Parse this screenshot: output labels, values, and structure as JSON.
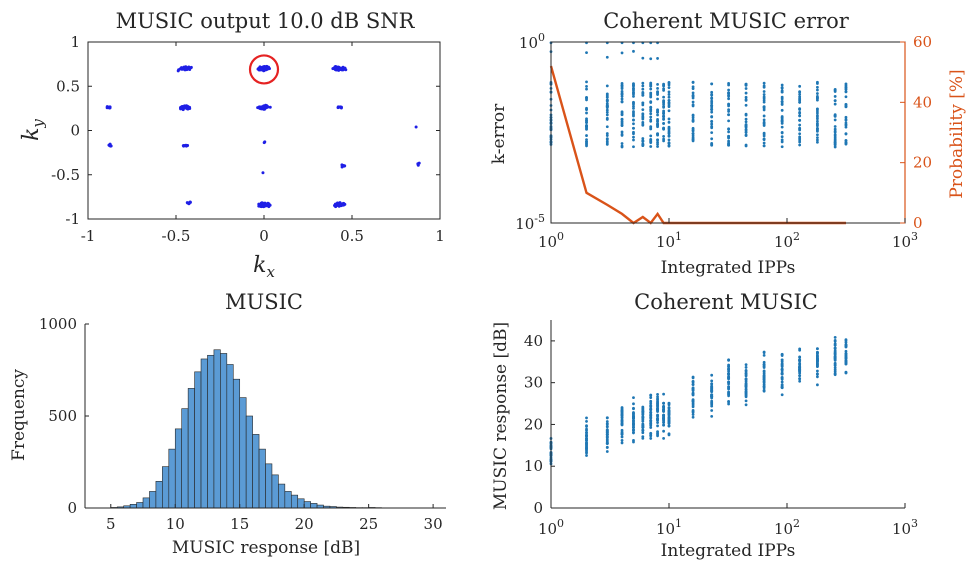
{
  "colors": {
    "blue_points": "#1f1fe6",
    "scatter_blue": "#1f77b4",
    "prob_orange": "#d95319",
    "hist_fill": "#5b9bd5",
    "axis": "#262626"
  },
  "chart_data": [
    {
      "id": "tl",
      "type": "scatter",
      "title": "MUSIC output 10.0 dB SNR",
      "xlabel": "k",
      "xlabel_sub": "x",
      "ylabel": "k",
      "ylabel_sub": "y",
      "xlim": [
        -1,
        1
      ],
      "ylim": [
        -1,
        1
      ],
      "xticks": [
        -1,
        -0.5,
        0,
        0.5,
        1
      ],
      "xtick_labels": [
        "-1",
        "-0.5",
        "0",
        "0.5",
        "1"
      ],
      "yticks": [
        -1,
        -0.5,
        0,
        0.5,
        1
      ],
      "ytick_labels": [
        "-1",
        "-0.5",
        "0",
        "0.5",
        "1"
      ],
      "clusters": [
        {
          "x": -0.45,
          "y": 0.7,
          "n": 40
        },
        {
          "x": 0.0,
          "y": 0.7,
          "n": 90
        },
        {
          "x": 0.43,
          "y": 0.7,
          "n": 40
        },
        {
          "x": -0.88,
          "y": 0.26,
          "n": 8
        },
        {
          "x": -0.45,
          "y": 0.26,
          "n": 45
        },
        {
          "x": 0.0,
          "y": 0.26,
          "n": 45
        },
        {
          "x": 0.43,
          "y": 0.26,
          "n": 8
        },
        {
          "x": -0.88,
          "y": -0.17,
          "n": 6
        },
        {
          "x": -0.45,
          "y": -0.17,
          "n": 8
        },
        {
          "x": 0.0,
          "y": -0.13,
          "n": 2
        },
        {
          "x": 0.45,
          "y": -0.4,
          "n": 6
        },
        {
          "x": 0.87,
          "y": 0.03,
          "n": 1
        },
        {
          "x": 0.88,
          "y": -0.38,
          "n": 4
        },
        {
          "x": 0.0,
          "y": -0.48,
          "n": 1
        },
        {
          "x": -0.43,
          "y": -0.82,
          "n": 8
        },
        {
          "x": 0.0,
          "y": -0.84,
          "n": 55
        },
        {
          "x": 0.43,
          "y": -0.84,
          "n": 50
        }
      ],
      "highlight": {
        "x": 0.0,
        "y": 0.69
      }
    },
    {
      "id": "tr",
      "type": "scatter",
      "title": "Coherent MUSIC error",
      "xlabel": "Integrated IPPs",
      "ylabel": "k-error",
      "y2label": "Probability [%]",
      "xscale": "log",
      "yscale": "log",
      "xlim": [
        1,
        1000
      ],
      "ylim": [
        1e-05,
        1
      ],
      "y2lim": [
        0,
        60
      ],
      "xticks": [
        1,
        10,
        100,
        1000
      ],
      "xtick_base": "10",
      "xtick_exps": [
        "0",
        "1",
        "2",
        "3"
      ],
      "yticks": [
        1e-05,
        1
      ],
      "ytick_base": "10",
      "ytick_exps": [
        "-5",
        "0"
      ],
      "y2ticks": [
        0,
        20,
        40,
        60
      ],
      "y2tick_labels": [
        "0",
        "20",
        "40",
        "60"
      ],
      "ipps": [
        1,
        2,
        3,
        4,
        5,
        6,
        7,
        8,
        9,
        10,
        16,
        23,
        32,
        45,
        64,
        91,
        128,
        181,
        256,
        316
      ],
      "kerror_band": {
        "center_log10": -2.0,
        "half_span_log10": 0.9
      },
      "series": [
        {
          "name": "Probability",
          "x": [
            1,
            2,
            3,
            4,
            5,
            6,
            7,
            8,
            9,
            10,
            20,
            50,
            100,
            200,
            316
          ],
          "values": [
            52,
            10,
            6,
            3,
            0,
            2,
            0,
            3,
            0,
            0,
            0,
            0,
            0,
            0,
            0
          ]
        }
      ]
    },
    {
      "id": "bl",
      "type": "bar",
      "title": "MUSIC",
      "xlabel": "MUSIC response [dB]",
      "ylabel": "Frequency",
      "xlim": [
        3,
        31
      ],
      "ylim": [
        0,
        1000
      ],
      "xticks": [
        5,
        10,
        15,
        20,
        25,
        30
      ],
      "xtick_labels": [
        "5",
        "10",
        "15",
        "20",
        "25",
        "30"
      ],
      "yticks": [
        0,
        500,
        1000
      ],
      "ytick_labels": [
        "0",
        "500",
        "1000"
      ],
      "bin_start": 5,
      "bin_width": 0.5,
      "values": [
        3,
        6,
        12,
        20,
        30,
        55,
        90,
        145,
        225,
        320,
        430,
        540,
        650,
        740,
        810,
        830,
        860,
        840,
        780,
        700,
        600,
        500,
        400,
        320,
        240,
        180,
        130,
        90,
        70,
        50,
        35,
        25,
        16,
        10,
        8,
        5,
        4,
        3,
        2,
        2,
        3,
        2,
        1,
        1,
        1,
        1,
        1,
        1
      ]
    },
    {
      "id": "br",
      "type": "scatter",
      "title": "Coherent MUSIC",
      "xlabel": "Integrated IPPs",
      "ylabel": "MUSIC response [dB]",
      "xscale": "log",
      "xlim": [
        1,
        1000
      ],
      "ylim": [
        0,
        45
      ],
      "xticks": [
        1,
        10,
        100,
        1000
      ],
      "xtick_base": "10",
      "xtick_exps": [
        "0",
        "1",
        "2",
        "3"
      ],
      "yticks": [
        0,
        10,
        20,
        30,
        40
      ],
      "ytick_labels": [
        "0",
        "10",
        "20",
        "30",
        "40"
      ],
      "points": [
        {
          "x": 1,
          "low": 7,
          "high": 20
        },
        {
          "x": 2,
          "low": 10,
          "high": 23
        },
        {
          "x": 3,
          "low": 11,
          "high": 24
        },
        {
          "x": 4,
          "low": 12,
          "high": 28
        },
        {
          "x": 5,
          "low": 13,
          "high": 29
        },
        {
          "x": 6,
          "low": 14,
          "high": 28
        },
        {
          "x": 7,
          "low": 14,
          "high": 30
        },
        {
          "x": 8,
          "low": 15,
          "high": 31
        },
        {
          "x": 9,
          "low": 15,
          "high": 29
        },
        {
          "x": 10,
          "low": 15,
          "high": 30
        },
        {
          "x": 16,
          "low": 18,
          "high": 35
        },
        {
          "x": 23,
          "low": 20,
          "high": 34
        },
        {
          "x": 32,
          "low": 21,
          "high": 40
        },
        {
          "x": 45,
          "low": 22,
          "high": 37
        },
        {
          "x": 64,
          "low": 24,
          "high": 39
        },
        {
          "x": 91,
          "low": 25,
          "high": 40
        },
        {
          "x": 128,
          "low": 27,
          "high": 41
        },
        {
          "x": 181,
          "low": 28,
          "high": 42
        },
        {
          "x": 256,
          "low": 29,
          "high": 44
        },
        {
          "x": 316,
          "low": 29,
          "high": 45
        }
      ]
    }
  ]
}
